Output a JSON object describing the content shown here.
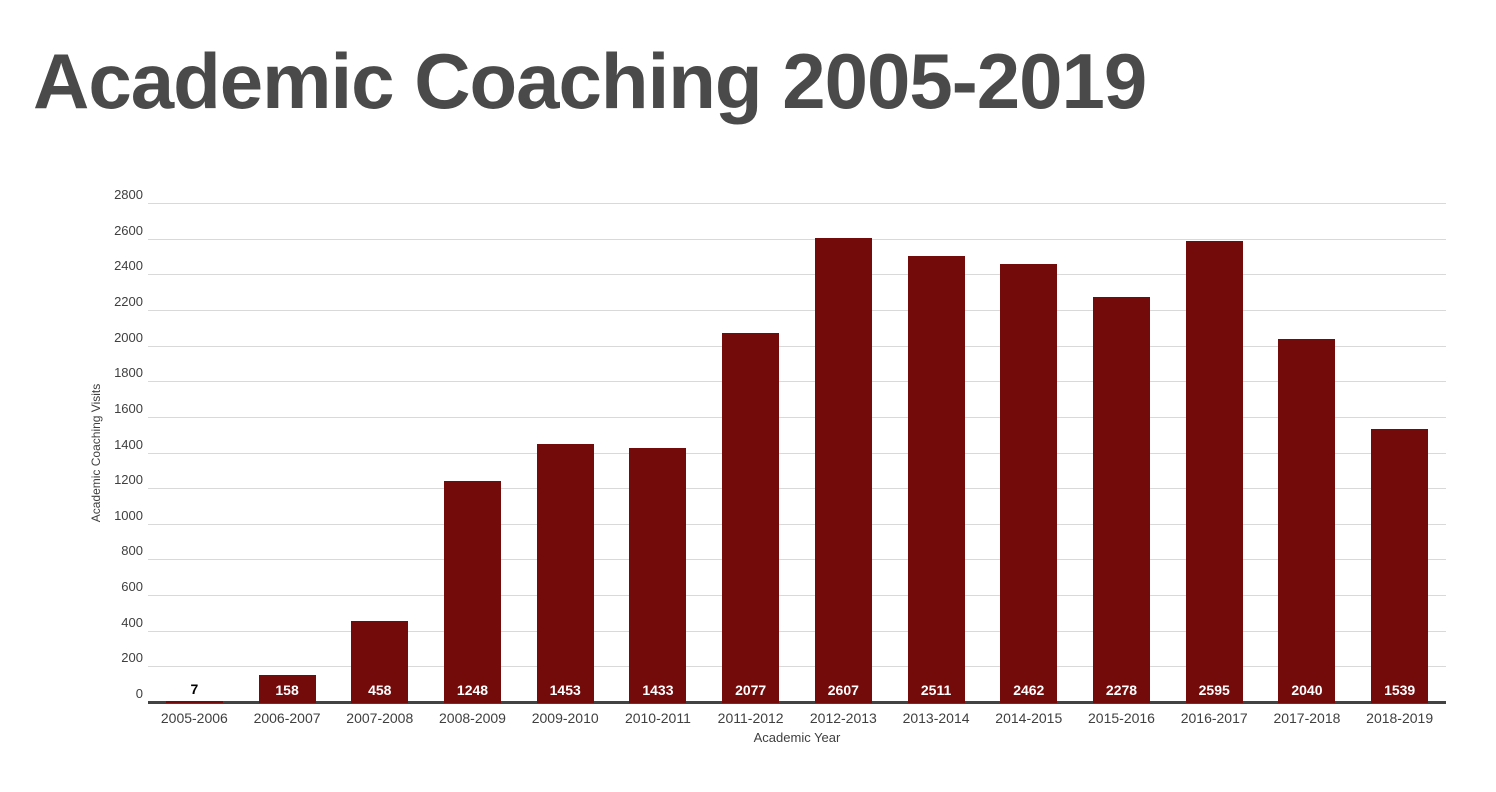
{
  "chart_data": {
    "type": "bar",
    "title": "Academic Coaching 2005-2019",
    "categories": [
      "2005-2006",
      "2006-2007",
      "2007-2008",
      "2008-2009",
      "2009-2010",
      "2010-2011",
      "2011-2012",
      "2012-2013",
      "2013-2014",
      "2014-2015",
      "2015-2016",
      "2016-2017",
      "2017-2018",
      "2018-2019"
    ],
    "values": [
      7,
      158,
      458,
      1248,
      1453,
      1433,
      2077,
      2607,
      2511,
      2462,
      2278,
      2595,
      2040,
      1539
    ],
    "value_labels": [
      "7",
      "158",
      "458",
      "1248",
      "1453",
      "1433",
      "2077",
      "2607",
      "2511",
      "2462",
      "2278",
      "2595",
      "2040",
      "1539"
    ],
    "xlabel": "Academic Year",
    "ylabel": "Academic Coaching Visits",
    "ylim": [
      0,
      2800
    ],
    "ytick_step": 200,
    "grid": true,
    "legend": "none",
    "colors": {
      "bar": "#740b0b",
      "title": "#4a4a4a",
      "axis_text": "#3f3f3f",
      "gridline": "#d9d9d9",
      "baseline": "#424242",
      "value_label_inside": "#ffffff",
      "value_label_outside": "#000000"
    }
  }
}
